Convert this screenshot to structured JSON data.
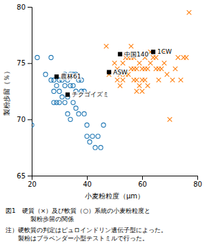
{
  "chart_data": {
    "type": "scatter",
    "xlabel": "小麦粉粒度（μm）",
    "ylabel": "製粉歩留（％）",
    "xlim": [
      20,
      80
    ],
    "ylim": [
      65,
      80
    ],
    "xticks": [
      20,
      40,
      60,
      80
    ],
    "yticks": [
      65,
      70,
      75,
      80
    ],
    "grid": false,
    "series": [
      {
        "marker": "circle",
        "x": [
          20,
          22,
          25,
          27,
          27,
          28,
          28,
          28,
          29,
          29,
          30,
          30,
          30,
          31,
          31,
          32,
          32,
          32,
          33,
          33,
          33,
          34,
          34,
          34,
          35,
          35,
          35,
          36,
          36,
          36,
          37,
          37,
          38,
          38,
          39,
          39,
          40,
          40,
          41,
          42,
          43,
          44,
          45,
          46
        ],
        "values": [
          69.5,
          75.5,
          74.0,
          75.5,
          73.5,
          73.5,
          72.5,
          71.5,
          73.0,
          71.5,
          73.5,
          72.5,
          71.5,
          73.5,
          72.0,
          74.0,
          73.0,
          71.5,
          73.5,
          72.0,
          70.5,
          74.0,
          73.0,
          70.0,
          74.0,
          73.0,
          71.5,
          74.0,
          72.5,
          71.0,
          73.5,
          70.5,
          73.5,
          72.5,
          72.5,
          70.5,
          69.5,
          68.5,
          68.0,
          68.5,
          67.5,
          68.5,
          67.5,
          69.5
        ]
      },
      {
        "marker": "x",
        "x": [
          47,
          48,
          50,
          51,
          51,
          52,
          52,
          53,
          53,
          54,
          54,
          55,
          55,
          56,
          56,
          56,
          57,
          57,
          57,
          58,
          58,
          58,
          59,
          59,
          60,
          60,
          60,
          61,
          61,
          61,
          62,
          62,
          63,
          63,
          64,
          65,
          65,
          66,
          66,
          67,
          68,
          68,
          69,
          70,
          71,
          72,
          73,
          74,
          75,
          76,
          77
        ],
        "values": [
          76.5,
          74.0,
          75.0,
          74.5,
          73.5,
          74.0,
          73.0,
          75.0,
          73.5,
          75.5,
          74.0,
          75.5,
          74.0,
          76.5,
          75.5,
          74.5,
          75.5,
          74.5,
          73.5,
          74.5,
          73.5,
          72.5,
          75.0,
          73.0,
          74.5,
          73.5,
          72.5,
          75.5,
          74.5,
          73.5,
          74.5,
          73.0,
          76.0,
          75.0,
          75.5,
          75.5,
          74.5,
          74.5,
          73.5,
          74.5,
          76.0,
          75.0,
          74.0,
          70.0,
          73.5,
          74.5,
          75.5,
          73.5,
          75.5,
          75.5,
          79.5
        ]
      },
      {
        "marker": "square",
        "color": "black",
        "x": [
          29,
          48,
          52,
          64,
          33
        ],
        "values": [
          73.8,
          74.2,
          75.8,
          76.0,
          72.2
        ],
        "labels": [
          "農林61",
          "ASW",
          "中国140",
          "1CW",
          "チクゴイズミ"
        ]
      }
    ],
    "caption": [
      "図1　硬質（×）及び軟質（○）系統の小麦粉粒度と",
      "　　　　製粉歩留の関係"
    ],
    "notes": [
      "注）硬軟質の判定はピュロインドリン遺伝子型によった。",
      "　　製粉はブラベンダー小型テストミルで行った。"
    ]
  }
}
